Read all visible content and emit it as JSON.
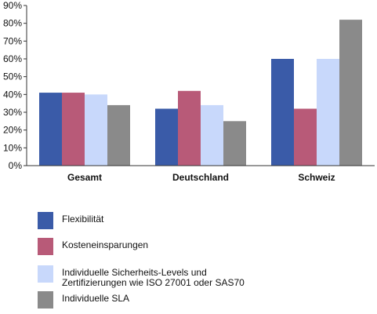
{
  "chart_data": {
    "type": "bar",
    "categories": [
      "Gesamt",
      "Deutschland",
      "Schweiz"
    ],
    "series": [
      {
        "name": "Flexibilität",
        "values": [
          41,
          32,
          60
        ],
        "color": "#3a5ba8"
      },
      {
        "name": "Kosteneinsparungen",
        "values": [
          41,
          42,
          32
        ],
        "color": "#b85a78"
      },
      {
        "name": "Individuelle Sicherheits-Levels und\nZertifizierungen wie ISO 27001 oder SAS70",
        "values": [
          40,
          34,
          60
        ],
        "color": "#c8d8fb"
      },
      {
        "name": "Individuelle SLA",
        "values": [
          34,
          25,
          82
        ],
        "color": "#8a8a8a"
      }
    ],
    "ylim": [
      0,
      90
    ],
    "yticks": [
      "0%",
      "10%",
      "20%",
      "30%",
      "40%",
      "50%",
      "60%",
      "70%",
      "80%",
      "90%"
    ],
    "grid": false,
    "legend_position": "bottom"
  }
}
